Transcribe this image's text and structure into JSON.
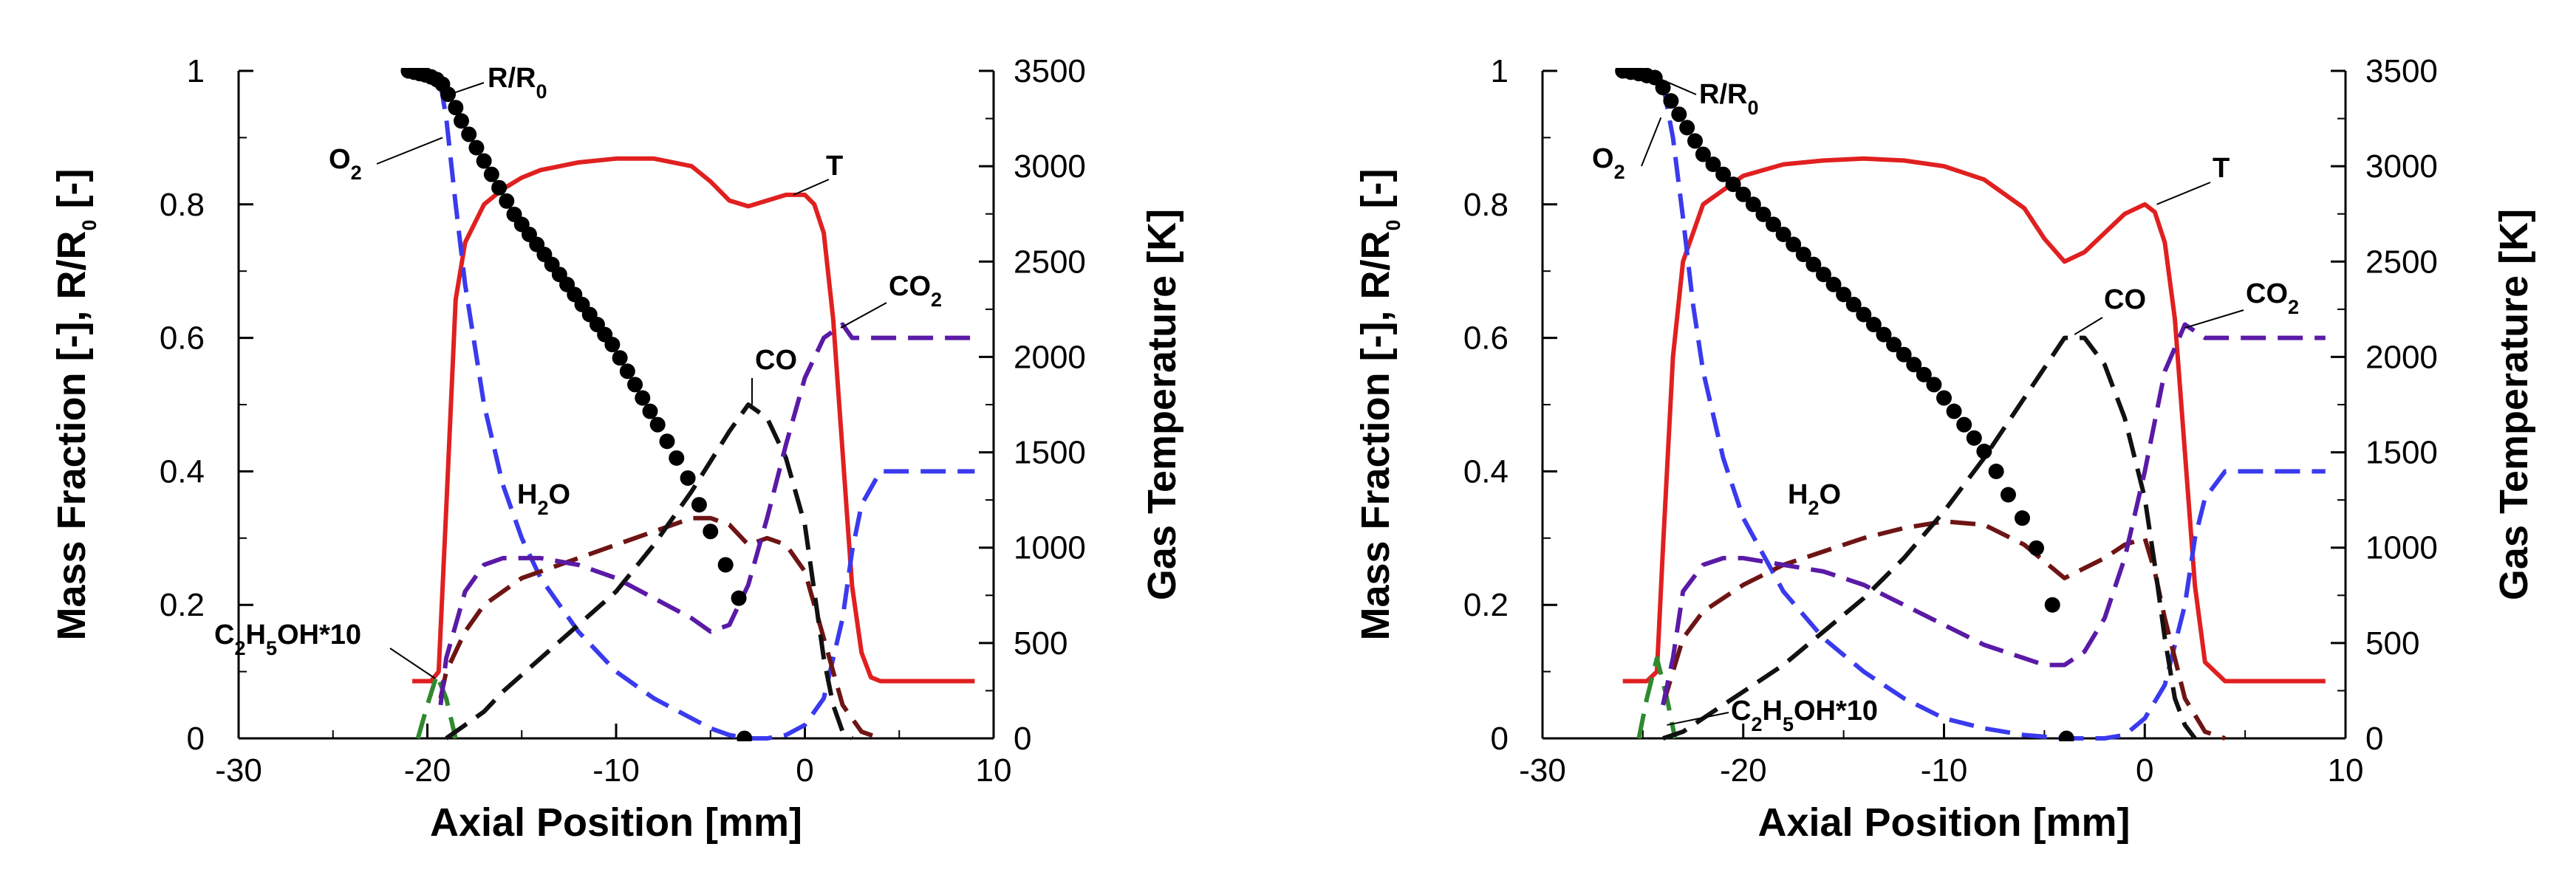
{
  "chart_data": [
    {
      "type": "line",
      "panel": "left",
      "xlabel": "Axial Position [mm]",
      "ylabel": "Mass Fraction [-], R/R0 [-]",
      "y2label": "Gas Temperature [K]",
      "xlim": [
        -30,
        10
      ],
      "ylim": [
        0,
        1
      ],
      "y2lim": [
        0,
        3500
      ],
      "xticks": [
        "-30",
        "-20",
        "-10",
        "0",
        "10"
      ],
      "yticks": [
        "0",
        "0.2",
        "0.4",
        "0.6",
        "0.8",
        "1"
      ],
      "y2ticks": [
        "0",
        "500",
        "1000",
        "1500",
        "2000",
        "2500",
        "3000",
        "3500"
      ],
      "curve_labels": {
        "R": "R/R0",
        "O2": "O2",
        "T": "T",
        "CO2": "CO2",
        "CO": "CO",
        "H2O": "H2O",
        "C2H5OH": "C2H5OH*10"
      },
      "series": [
        {
          "name": "T",
          "axis": "right",
          "color": "#e02020",
          "dash": "solid",
          "x": [
            -20.8,
            -19.8,
            -19.4,
            -19,
            -18.5,
            -18,
            -17,
            -16,
            -15,
            -14,
            -12,
            -10,
            -8,
            -6,
            -5,
            -4,
            -3,
            -2,
            -1,
            0,
            0.5,
            1,
            1.5,
            2,
            2.5,
            3,
            3.5,
            4,
            6,
            9
          ],
          "y": [
            300,
            300,
            350,
            1200,
            2300,
            2600,
            2800,
            2880,
            2940,
            2980,
            3020,
            3040,
            3040,
            3000,
            2920,
            2820,
            2790,
            2820,
            2850,
            2850,
            2800,
            2650,
            2200,
            1500,
            800,
            450,
            320,
            300,
            300,
            300
          ]
        },
        {
          "name": "O2",
          "axis": "left",
          "color": "#3a3aee",
          "dash": "long",
          "x": [
            -19.3,
            -19,
            -18.5,
            -18,
            -17,
            -16,
            -15,
            -14,
            -12,
            -10,
            -8,
            -6,
            -5,
            -4,
            -3,
            -2,
            -1,
            0,
            1,
            2,
            2.5,
            3,
            4,
            9
          ],
          "y": [
            0.98,
            0.93,
            0.8,
            0.68,
            0.5,
            0.38,
            0.3,
            0.24,
            0.16,
            0.1,
            0.06,
            0.03,
            0.015,
            0.005,
            0.0,
            0.0,
            0.005,
            0.02,
            0.06,
            0.18,
            0.28,
            0.35,
            0.4,
            0.4
          ]
        },
        {
          "name": "C2H5OH*10",
          "axis": "left",
          "color": "#2f8a2f",
          "dash": "long",
          "x": [
            -20.5,
            -20,
            -19.5,
            -19,
            -18.5
          ],
          "y": [
            0.0,
            0.05,
            0.095,
            0.06,
            0.0
          ]
        },
        {
          "name": "H2O",
          "axis": "left",
          "color": "#6e1414",
          "dash": "long",
          "x": [
            -19.3,
            -19,
            -18,
            -17,
            -15,
            -12,
            -10,
            -8,
            -6,
            -5,
            -4,
            -3,
            -2,
            -1,
            0,
            0.5,
            1,
            2,
            3,
            4
          ],
          "y": [
            0.06,
            0.1,
            0.16,
            0.2,
            0.24,
            0.27,
            0.29,
            0.31,
            0.33,
            0.33,
            0.32,
            0.29,
            0.3,
            0.29,
            0.25,
            0.2,
            0.15,
            0.05,
            0.01,
            0.0
          ]
        },
        {
          "name": "CO",
          "axis": "left",
          "color": "#111111",
          "dash": "long",
          "x": [
            -19,
            -18,
            -17,
            -16,
            -14,
            -12,
            -10,
            -8,
            -6,
            -4,
            -3,
            -2,
            -1,
            0,
            0.5,
            1,
            1.5,
            2,
            2.5
          ],
          "y": [
            0.0,
            0.02,
            0.04,
            0.07,
            0.12,
            0.17,
            0.22,
            0.29,
            0.37,
            0.46,
            0.5,
            0.48,
            0.42,
            0.32,
            0.22,
            0.12,
            0.05,
            0.01,
            0.0
          ]
        },
        {
          "name": "CO2",
          "axis": "left",
          "color": "#5a1aa6",
          "dash": "long",
          "x": [
            -19.3,
            -19,
            -18,
            -17,
            -16,
            -14,
            -12,
            -10,
            -8,
            -6,
            -5,
            -4,
            -3,
            -2,
            -1,
            0,
            1,
            2,
            2.5,
            3,
            4,
            9
          ],
          "y": [
            0.05,
            0.12,
            0.22,
            0.26,
            0.27,
            0.27,
            0.26,
            0.24,
            0.21,
            0.18,
            0.16,
            0.17,
            0.23,
            0.33,
            0.44,
            0.54,
            0.6,
            0.62,
            0.6,
            0.6,
            0.6,
            0.6
          ]
        },
        {
          "name": "R/R0",
          "axis": "left",
          "color": "#000000",
          "dash": "points",
          "x": [
            -21,
            -20.7,
            -20.4,
            -20.1,
            -19.8,
            -19.5,
            -19.2,
            -18.9,
            -18.5,
            -18.2,
            -17.8,
            -17.4,
            -17,
            -16.6,
            -16.2,
            -15.8,
            -15.4,
            -15,
            -14.6,
            -14.2,
            -13.8,
            -13.4,
            -13,
            -12.6,
            -12.2,
            -11.8,
            -11.4,
            -11,
            -10.6,
            -10.2,
            -9.8,
            -9.4,
            -9,
            -8.6,
            -8.2,
            -7.8,
            -7.3,
            -6.8,
            -6.2,
            -5.6,
            -5,
            -4.2,
            -3.5
          ],
          "y": [
            1.0,
            0.998,
            0.996,
            0.994,
            0.991,
            0.987,
            0.98,
            0.965,
            0.945,
            0.925,
            0.905,
            0.885,
            0.865,
            0.845,
            0.825,
            0.805,
            0.785,
            0.77,
            0.755,
            0.74,
            0.725,
            0.71,
            0.695,
            0.68,
            0.665,
            0.65,
            0.635,
            0.62,
            0.605,
            0.59,
            0.57,
            0.55,
            0.53,
            0.51,
            0.49,
            0.47,
            0.445,
            0.42,
            0.39,
            0.35,
            0.31,
            0.26,
            0.21
          ]
        },
        {
          "name": "R/R0 end",
          "axis": "left",
          "color": "#000000",
          "dash": "points",
          "x": [
            -3.2
          ],
          "y": [
            0.0
          ]
        }
      ]
    },
    {
      "type": "line",
      "panel": "right",
      "xlabel": "Axial Position [mm]",
      "ylabel": "Mass Fraction [-], R/R0 [-]",
      "y2label": "Gas Temperature [K]",
      "xlim": [
        -30,
        10
      ],
      "ylim": [
        0,
        1
      ],
      "y2lim": [
        0,
        3500
      ],
      "xticks": [
        "-30",
        "-20",
        "-10",
        "0",
        "10"
      ],
      "yticks": [
        "0",
        "0.2",
        "0.4",
        "0.6",
        "0.8",
        "1"
      ],
      "y2ticks": [
        "0",
        "500",
        "1000",
        "1500",
        "2000",
        "2500",
        "3000",
        "3500"
      ],
      "curve_labels": {
        "R": "R/R0",
        "O2": "O2",
        "T": "T",
        "CO2": "CO2",
        "CO": "CO",
        "H2O": "H2O",
        "C2H5OH": "C2H5OH*10"
      },
      "series": [
        {
          "name": "T",
          "axis": "right",
          "color": "#e02020",
          "dash": "solid",
          "x": [
            -26,
            -24.8,
            -24.3,
            -24,
            -23.5,
            -23,
            -22,
            -20,
            -18,
            -16,
            -14,
            -12,
            -10,
            -8,
            -6,
            -5,
            -4,
            -3,
            -2,
            -1,
            0,
            0.5,
            1,
            1.5,
            2,
            2.5,
            3,
            4,
            9
          ],
          "y": [
            300,
            300,
            350,
            1000,
            2000,
            2500,
            2800,
            2950,
            3010,
            3030,
            3040,
            3030,
            3000,
            2930,
            2780,
            2620,
            2500,
            2550,
            2650,
            2750,
            2800,
            2760,
            2600,
            2200,
            1500,
            800,
            400,
            300,
            300
          ]
        },
        {
          "name": "O2",
          "axis": "left",
          "color": "#3a3aee",
          "dash": "long",
          "x": [
            -24,
            -23.5,
            -23,
            -22.5,
            -22,
            -21,
            -20,
            -18,
            -16,
            -14,
            -12,
            -10,
            -8,
            -6,
            -4,
            -2,
            -1,
            0,
            1,
            2,
            2.5,
            3,
            4,
            9
          ],
          "y": [
            0.98,
            0.9,
            0.78,
            0.65,
            0.55,
            0.42,
            0.33,
            0.22,
            0.15,
            0.1,
            0.06,
            0.03,
            0.015,
            0.005,
            0.0,
            0.0,
            0.005,
            0.03,
            0.08,
            0.2,
            0.3,
            0.36,
            0.4,
            0.4
          ]
        },
        {
          "name": "C2H5OH*10",
          "axis": "left",
          "color": "#2f8a2f",
          "dash": "long",
          "x": [
            -25.2,
            -24.8,
            -24.3,
            -23.8,
            -23.4
          ],
          "y": [
            0.0,
            0.06,
            0.12,
            0.06,
            0.0
          ]
        },
        {
          "name": "H2O",
          "axis": "left",
          "color": "#6e1414",
          "dash": "long",
          "x": [
            -24,
            -23.5,
            -23,
            -22,
            -20,
            -18,
            -16,
            -14,
            -12,
            -10,
            -8,
            -6,
            -4,
            -2,
            -1,
            0,
            0.5,
            1,
            2,
            3,
            4
          ],
          "y": [
            0.05,
            0.1,
            0.15,
            0.19,
            0.23,
            0.26,
            0.28,
            0.3,
            0.315,
            0.325,
            0.32,
            0.29,
            0.24,
            0.27,
            0.29,
            0.3,
            0.25,
            0.18,
            0.06,
            0.01,
            0.0
          ]
        },
        {
          "name": "CO",
          "axis": "left",
          "color": "#111111",
          "dash": "long",
          "x": [
            -24,
            -23,
            -22,
            -20,
            -18,
            -16,
            -14,
            -12,
            -10,
            -8,
            -6,
            -4,
            -3,
            -2,
            -1,
            0,
            0.5,
            1,
            1.5,
            2,
            2.5
          ],
          "y": [
            0.0,
            0.01,
            0.03,
            0.07,
            0.11,
            0.16,
            0.21,
            0.27,
            0.34,
            0.42,
            0.51,
            0.6,
            0.6,
            0.56,
            0.48,
            0.36,
            0.26,
            0.15,
            0.06,
            0.02,
            0.0
          ]
        },
        {
          "name": "CO2",
          "axis": "left",
          "color": "#5a1aa6",
          "dash": "long",
          "x": [
            -24,
            -23.5,
            -23,
            -22,
            -21,
            -20,
            -18,
            -16,
            -14,
            -12,
            -10,
            -8,
            -6,
            -5,
            -4,
            -3,
            -2,
            -1,
            0,
            1,
            2,
            2.5,
            3,
            4,
            9
          ],
          "y": [
            0.05,
            0.12,
            0.22,
            0.26,
            0.27,
            0.27,
            0.26,
            0.25,
            0.23,
            0.2,
            0.17,
            0.14,
            0.12,
            0.11,
            0.11,
            0.13,
            0.18,
            0.27,
            0.4,
            0.55,
            0.62,
            0.61,
            0.6,
            0.6,
            0.6
          ]
        },
        {
          "name": "R/R0",
          "axis": "left",
          "color": "#000000",
          "dash": "points",
          "x": [
            -26,
            -25.6,
            -25.2,
            -24.8,
            -24.4,
            -24,
            -23.6,
            -23.2,
            -22.8,
            -22.4,
            -22,
            -21.5,
            -21,
            -20.5,
            -20,
            -19.5,
            -19,
            -18.5,
            -18,
            -17.5,
            -17,
            -16.5,
            -16,
            -15.5,
            -15,
            -14.5,
            -14,
            -13.5,
            -13,
            -12.5,
            -12,
            -11.5,
            -11,
            -10.5,
            -10,
            -9.5,
            -9,
            -8.5,
            -8,
            -7.4,
            -6.8,
            -6.1,
            -5.4,
            -4.6
          ],
          "y": [
            1.0,
            0.998,
            0.996,
            0.993,
            0.99,
            0.975,
            0.955,
            0.935,
            0.915,
            0.895,
            0.875,
            0.86,
            0.845,
            0.83,
            0.815,
            0.8,
            0.785,
            0.77,
            0.755,
            0.74,
            0.725,
            0.71,
            0.695,
            0.68,
            0.665,
            0.65,
            0.635,
            0.62,
            0.605,
            0.59,
            0.575,
            0.56,
            0.545,
            0.53,
            0.51,
            0.49,
            0.47,
            0.45,
            0.43,
            0.4,
            0.365,
            0.33,
            0.285,
            0.2
          ]
        },
        {
          "name": "R/R0 end",
          "axis": "left",
          "color": "#000000",
          "dash": "points",
          "x": [
            -3.9
          ],
          "y": [
            0.0
          ]
        }
      ]
    }
  ]
}
